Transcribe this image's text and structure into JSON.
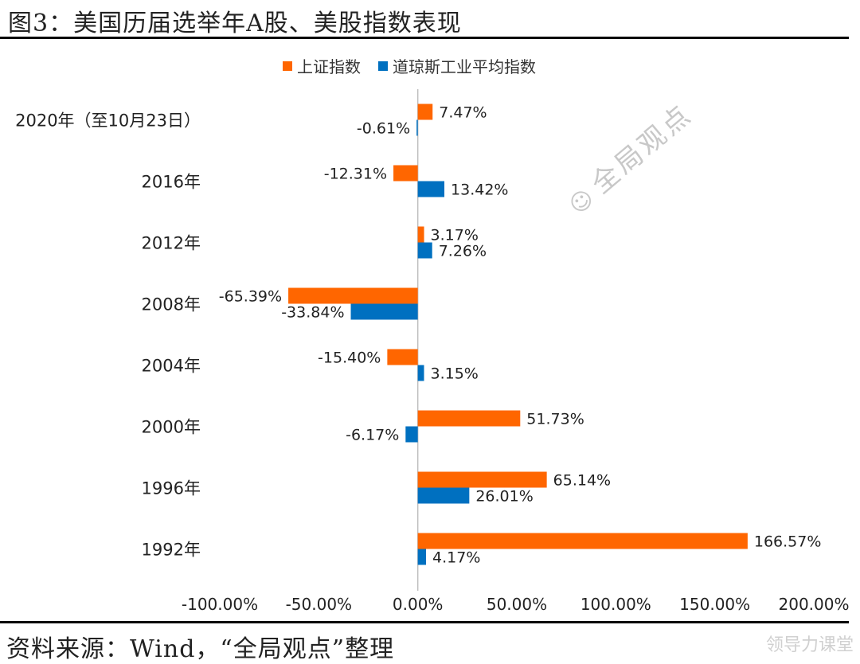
{
  "header": {
    "title": "图3：美国历届选举年A股、美股指数表现"
  },
  "footer": {
    "source": "资料来源：Wind，“全局观点”整理"
  },
  "watermark": {
    "text": "全局观点",
    "icon": "wechat-icon"
  },
  "corner_mark": {
    "text": "领导力课堂"
  },
  "colors": {
    "shanghai": "#FF6600",
    "dow": "#0070C0",
    "axis": "#bfbfbf"
  },
  "chart_data": {
    "type": "bar",
    "orientation": "horizontal",
    "categories": [
      "2020年（至10月23日）",
      "2016年",
      "2012年",
      "2008年",
      "2004年",
      "2000年",
      "1996年",
      "1992年"
    ],
    "series": [
      {
        "name": "上证指数",
        "color": "#FF6600",
        "values": [
          7.47,
          -12.31,
          3.17,
          -65.39,
          -15.4,
          51.73,
          65.14,
          166.57
        ],
        "labels": [
          "7.47%",
          "-12.31%",
          "3.17%",
          "-65.39%",
          "-15.40%",
          "51.73%",
          "65.14%",
          "166.57%"
        ]
      },
      {
        "name": "道琼斯工业平均指数",
        "color": "#0070C0",
        "values": [
          -0.61,
          13.42,
          7.26,
          -33.84,
          3.15,
          -6.17,
          26.01,
          4.17
        ],
        "labels": [
          "-0.61%",
          "13.42%",
          "7.26%",
          "-33.84%",
          "3.15%",
          "-6.17%",
          "26.01%",
          "4.17%"
        ]
      }
    ],
    "xlim": [
      -100,
      200
    ],
    "xticks": [
      -100,
      -50,
      0,
      50,
      100,
      150,
      200
    ],
    "xtick_labels": [
      "-100.00%",
      "-50.00%",
      "0.00%",
      "50.00%",
      "100.00%",
      "150.00%",
      "200.00%"
    ],
    "legend_position": "top",
    "grid": false,
    "title": "",
    "xlabel": "",
    "ylabel": ""
  }
}
